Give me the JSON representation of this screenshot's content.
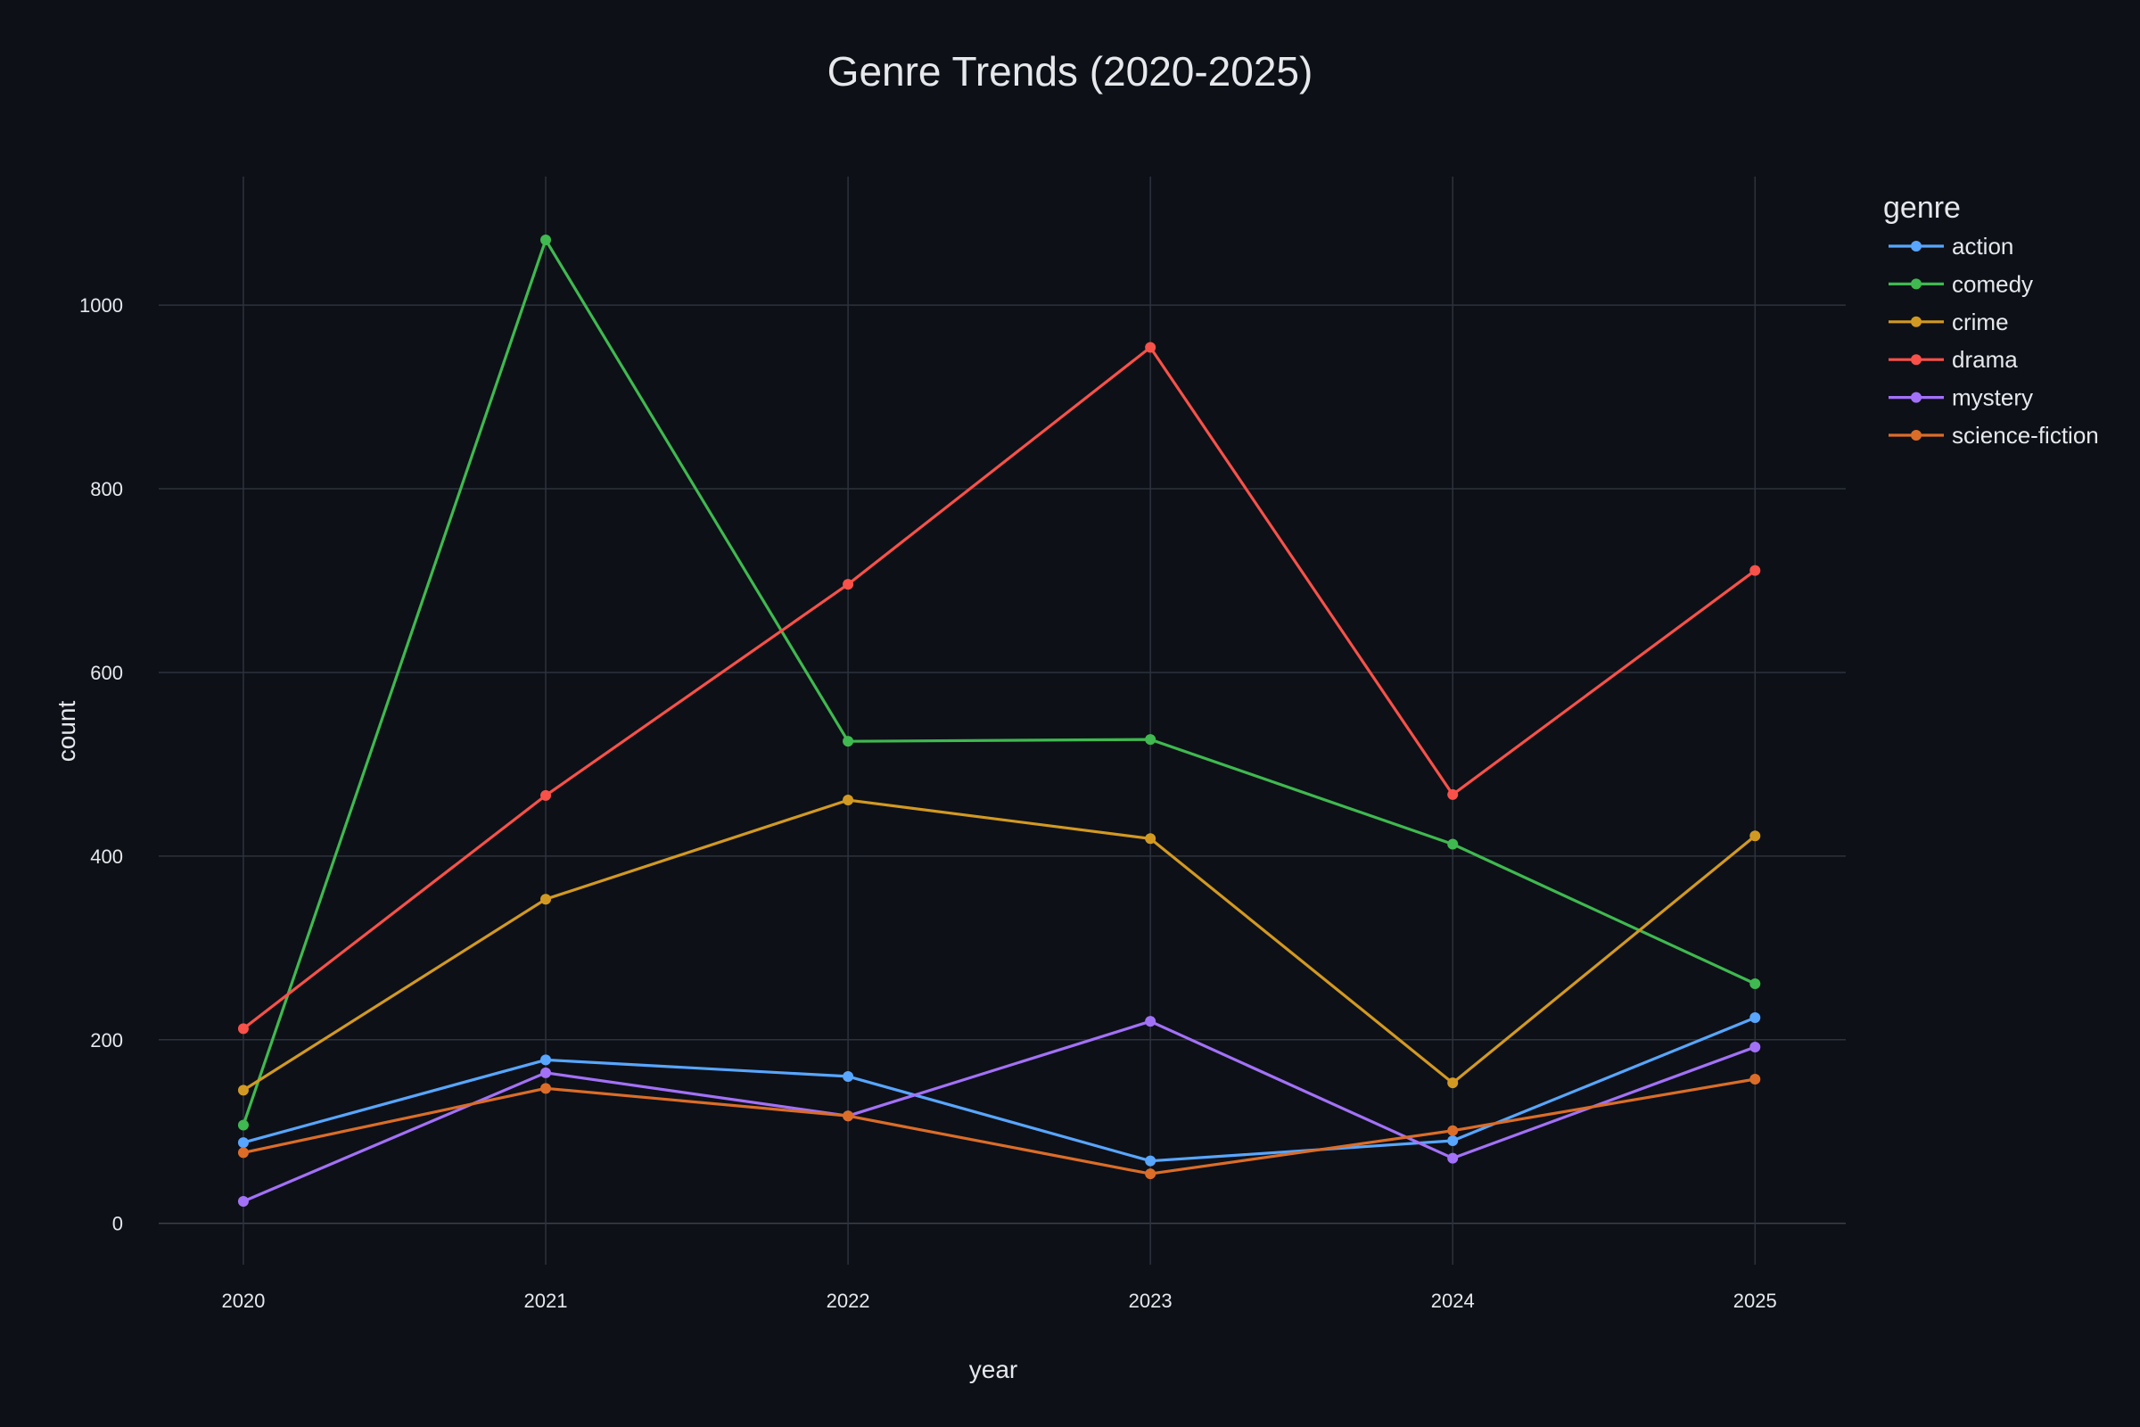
{
  "chart_data": {
    "type": "line",
    "title": "Genre Trends (2020-2025)",
    "xlabel": "year",
    "ylabel": "count",
    "x": [
      2020,
      2021,
      2022,
      2023,
      2024,
      2025
    ],
    "x_tick_labels": [
      "2020",
      "2021",
      "2022",
      "2023",
      "2024",
      "2025"
    ],
    "xlim": [
      2019.72,
      2025.3
    ],
    "y_ticks": [
      0,
      200,
      400,
      600,
      800,
      1000
    ],
    "y_tick_labels": [
      "0",
      "200",
      "400",
      "600",
      "800",
      "1000"
    ],
    "ylim": [
      -45,
      1140
    ],
    "grid": true,
    "legend_title": "genre",
    "legend_position": "right",
    "background": "#0d1017",
    "grid_color": "#2d323c",
    "text_color": "#e6e8ec",
    "series": [
      {
        "name": "action",
        "color": "#58a6ff",
        "values": [
          88,
          178,
          160,
          68,
          90,
          224
        ]
      },
      {
        "name": "comedy",
        "color": "#3fb950",
        "values": [
          107,
          1071,
          525,
          527,
          413,
          261
        ]
      },
      {
        "name": "crime",
        "color": "#d29922",
        "values": [
          145,
          353,
          461,
          419,
          153,
          422
        ]
      },
      {
        "name": "drama",
        "color": "#f85149",
        "values": [
          212,
          466,
          696,
          954,
          467,
          711
        ]
      },
      {
        "name": "mystery",
        "color": "#a371f7",
        "values": [
          24,
          164,
          117,
          220,
          71,
          192
        ]
      },
      {
        "name": "science-fiction",
        "color": "#db6d28",
        "values": [
          77,
          147,
          117,
          54,
          101,
          157
        ]
      }
    ]
  }
}
